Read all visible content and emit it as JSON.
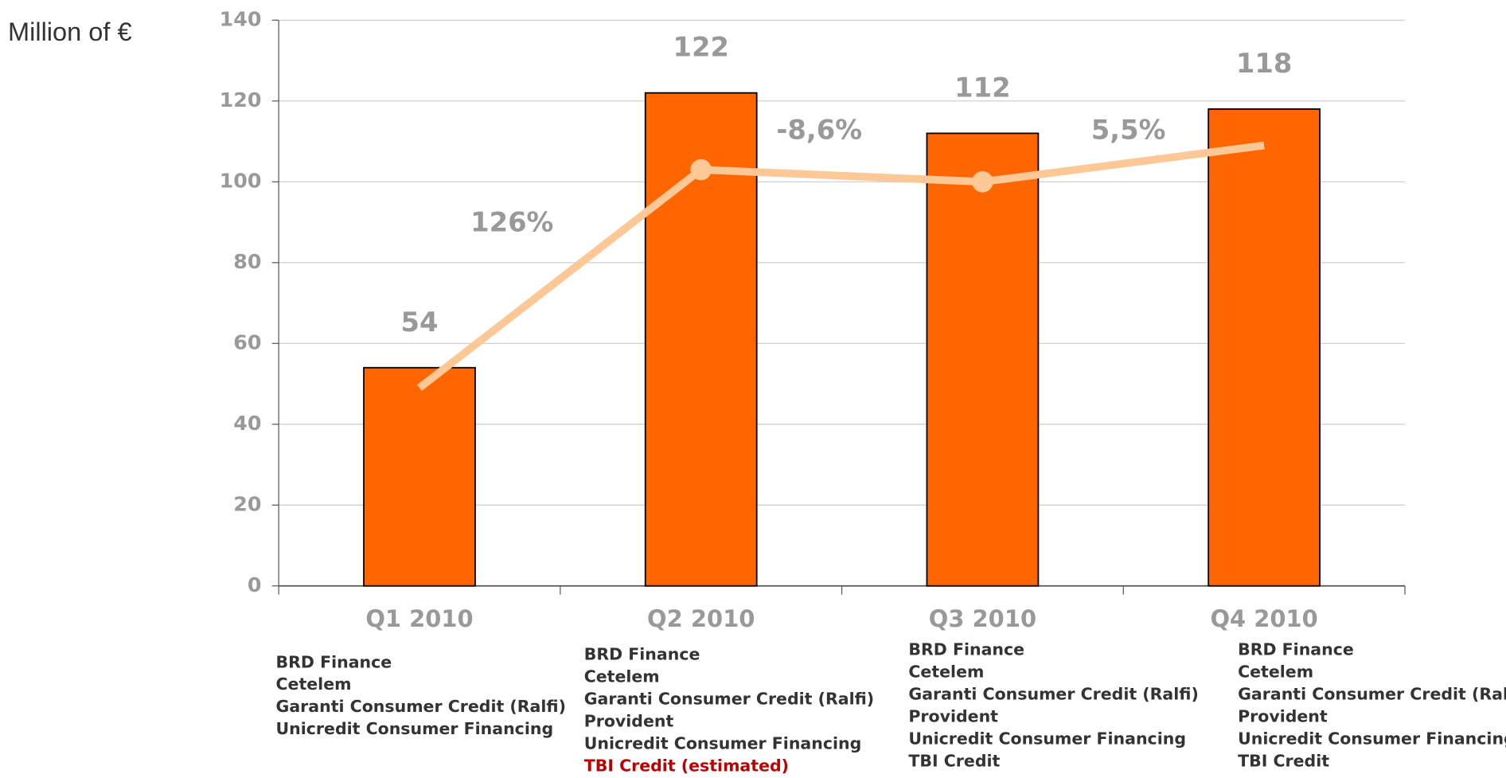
{
  "chart_data": {
    "type": "bar",
    "y_label": "Million of €",
    "categories": [
      "Q1 2010",
      "Q2 2010",
      "Q3 2010",
      "Q4 2010"
    ],
    "values": [
      54,
      122,
      112,
      118
    ],
    "color": "#ff6600",
    "ylim": [
      0,
      140
    ],
    "yticks": [
      0,
      20,
      40,
      60,
      80,
      100,
      120,
      140
    ],
    "grid": true,
    "line": {
      "color": "#fdc896",
      "values": [
        49,
        103,
        100,
        109
      ],
      "markers": [
        false,
        true,
        true,
        false
      ]
    },
    "annotations": [
      "126%",
      "-8,6%",
      "5,5%"
    ],
    "companies": [
      [
        {
          "name": "BRD Finance",
          "color": "#333333"
        },
        {
          "name": "Cetelem",
          "color": "#333333"
        },
        {
          "name": "Garanti Consumer Credit (Ralfi)",
          "color": "#333333"
        },
        {
          "name": "Unicredit Consumer Financing",
          "color": "#333333"
        }
      ],
      [
        {
          "name": "BRD Finance",
          "color": "#333333"
        },
        {
          "name": "Cetelem",
          "color": "#333333"
        },
        {
          "name": "Garanti Consumer Credit (Ralfi)",
          "color": "#333333"
        },
        {
          "name": "Provident",
          "color": "#333333"
        },
        {
          "name": "Unicredit Consumer Financing",
          "color": "#333333"
        },
        {
          "name": "TBI Credit (estimated)",
          "color": "#c00000"
        }
      ],
      [
        {
          "name": "BRD Finance",
          "color": "#333333"
        },
        {
          "name": "Cetelem",
          "color": "#333333"
        },
        {
          "name": "Garanti Consumer Credit (Ralfi)",
          "color": "#333333"
        },
        {
          "name": "Provident",
          "color": "#333333"
        },
        {
          "name": "Unicredit Consumer Financing",
          "color": "#333333"
        },
        {
          "name": "TBI Credit",
          "color": "#333333"
        }
      ],
      [
        {
          "name": "BRD Finance",
          "color": "#333333"
        },
        {
          "name": "Cetelem",
          "color": "#333333"
        },
        {
          "name": "Garanti Consumer Credit (Ralfi)",
          "color": "#333333"
        },
        {
          "name": "Provident",
          "color": "#333333"
        },
        {
          "name": "Unicredit Consumer Financing",
          "color": "#333333"
        },
        {
          "name": "TBI Credit",
          "color": "#333333"
        }
      ]
    ]
  }
}
